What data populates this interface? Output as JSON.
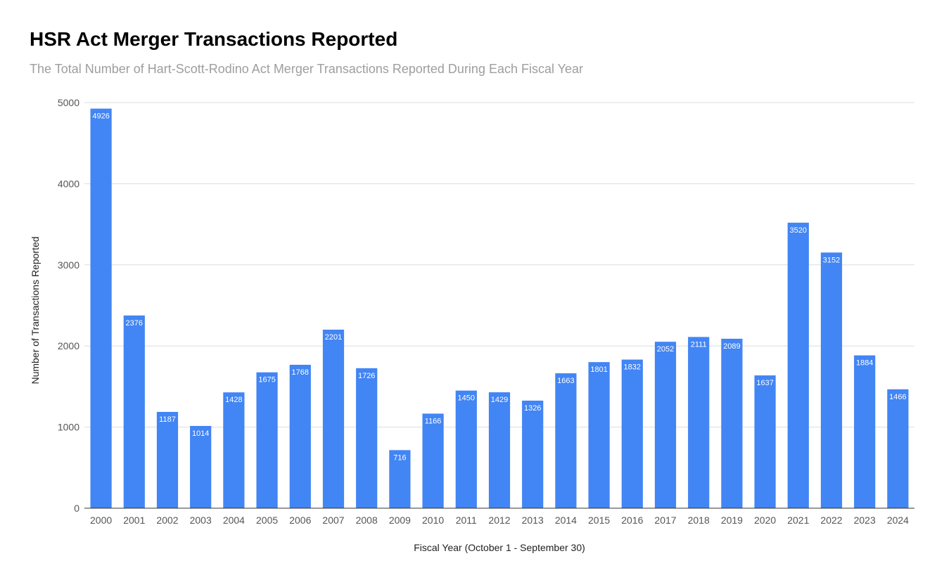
{
  "chart_data": {
    "type": "bar",
    "title": "HSR Act Merger Transactions Reported",
    "subtitle": "The Total Number of Hart-Scott-Rodino Act Merger Transactions Reported During Each Fiscal Year",
    "xlabel": "Fiscal Year (October 1 - September 30)",
    "ylabel": "Number of Transactions Reported",
    "ylim": [
      0,
      5000
    ],
    "yticks": [
      "0",
      "1000",
      "2000",
      "3000",
      "4000",
      "5000"
    ],
    "grid": true,
    "legend": "none",
    "bar_color": "#4285f4",
    "categories": [
      "2000",
      "2001",
      "2002",
      "2003",
      "2004",
      "2005",
      "2006",
      "2007",
      "2008",
      "2009",
      "2010",
      "2011",
      "2012",
      "2013",
      "2014",
      "2015",
      "2016",
      "2017",
      "2018",
      "2019",
      "2020",
      "2021",
      "2022",
      "2023",
      "2024"
    ],
    "values": [
      4926,
      2376,
      1187,
      1014,
      1428,
      1675,
      1768,
      2201,
      1726,
      716,
      1166,
      1450,
      1429,
      1326,
      1663,
      1801,
      1832,
      2052,
      2111,
      2089,
      1637,
      3520,
      3152,
      1884,
      1466
    ]
  }
}
